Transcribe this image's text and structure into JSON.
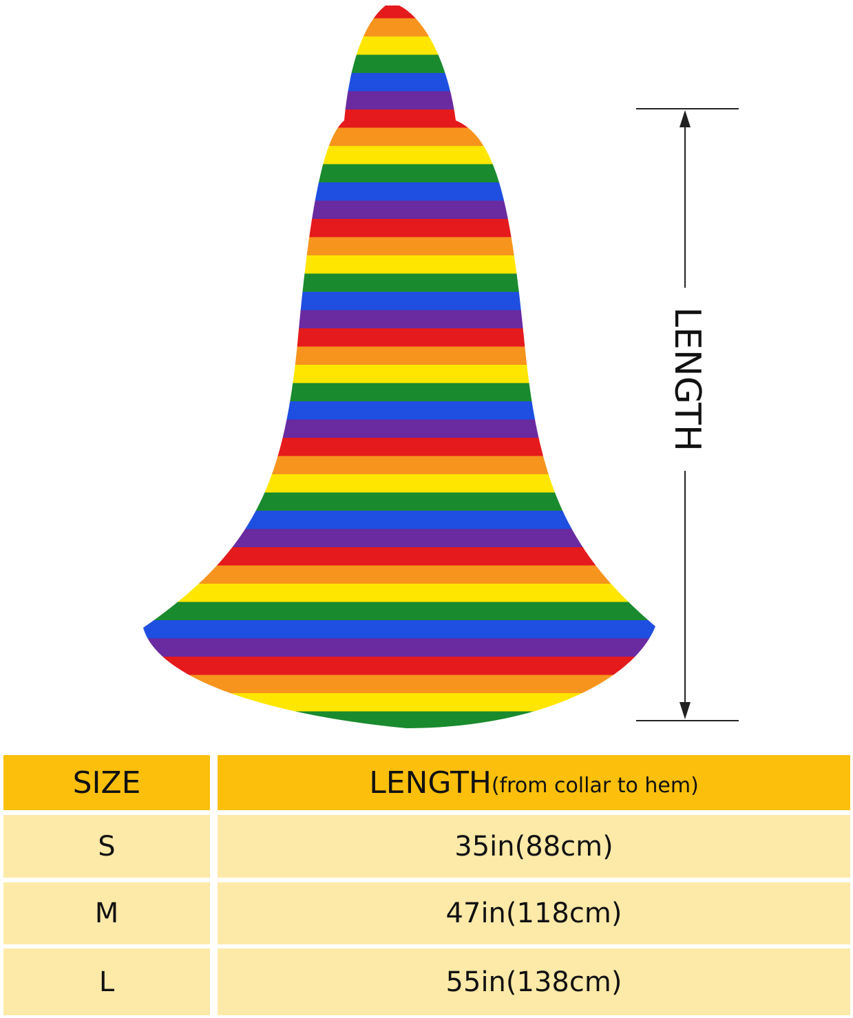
{
  "measure": {
    "label": "LENGTH"
  },
  "table": {
    "header": {
      "size": "SIZE",
      "length": "LENGTH",
      "note": "(from collar to hem)"
    },
    "rows": [
      [
        "S",
        "35in(88cm)"
      ],
      [
        "M",
        "47in(118cm)"
      ],
      [
        "L",
        "55in(138cm)"
      ]
    ]
  }
}
